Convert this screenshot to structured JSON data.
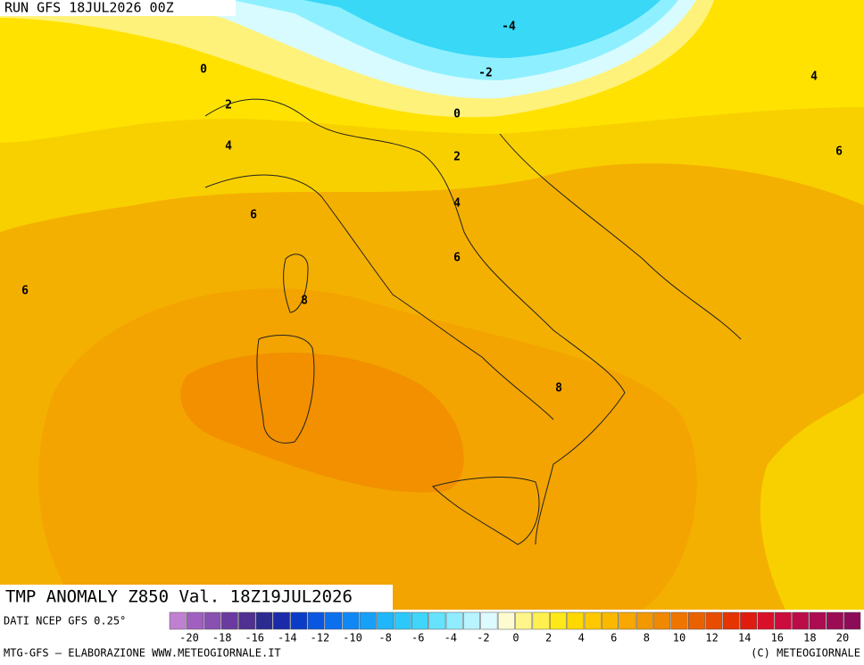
{
  "header": {
    "run": "RUN GFS 18JUL2026 00Z"
  },
  "map": {
    "title": "TMP ANOMALY Z850 Val. 18Z19JUL2026",
    "contour_labels": [
      "-4",
      "-2",
      "0",
      "0",
      "2",
      "2",
      "4",
      "4",
      "4",
      "6",
      "6",
      "6",
      "6",
      "8",
      "8"
    ]
  },
  "legend": {
    "source": "DATI NCEP GFS 0.25°",
    "labels": [
      "-20",
      "-18",
      "-16",
      "-14",
      "-12",
      "-10",
      "-8",
      "-6",
      "-4",
      "-2",
      "0",
      "2",
      "4",
      "6",
      "8",
      "10",
      "12",
      "14",
      "16",
      "18",
      "20"
    ]
  },
  "footer": {
    "left": "MTG-GFS — ELABORAZIONE WWW.METEOGIORNALE.IT",
    "right": "(C) METEOGIORNALE"
  }
}
